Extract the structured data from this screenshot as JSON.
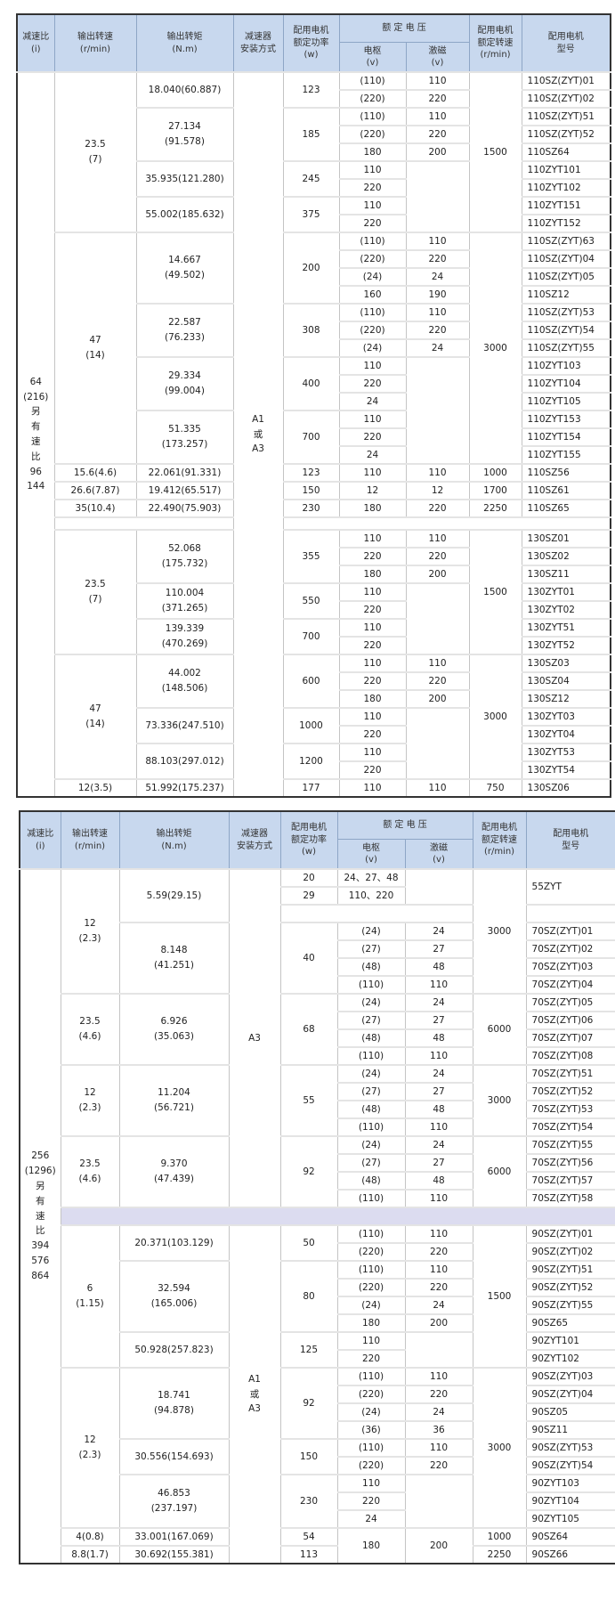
{
  "header": {
    "ratio": "减速比\n(i)",
    "speed": "输出转速\n(r/min)",
    "torque": "输出转矩\n(N.m)",
    "mount": "减速器\n安装方式",
    "power": "配用电机\n额定功率\n(w)",
    "voltage": "额 定 电 压",
    "armature": "电枢\n(v)",
    "excitation": "激磁\n(v)",
    "rpm": "配用电机\n额定转速\n(r/min)",
    "model": "配用电机\n型号"
  },
  "colors": {
    "header_bg": "#c8d8ee",
    "separator_bg": "#dcdcf0",
    "border": "#333333"
  },
  "tables": [
    {
      "rows": [
        [
          {
            "t": "64\n(216)\n另\n有\n速\n比\n96\n144",
            "rs": 41
          },
          {
            "t": "23.5\n(7)",
            "rs": 9
          },
          {
            "t": "18.040(60.887)",
            "rs": 2
          },
          {
            "t": "A1\n或\nA3",
            "rs": 41
          },
          {
            "t": "123",
            "rs": 2
          },
          "(110)",
          "110",
          {
            "t": "1500",
            "rs": 9
          },
          "110SZ(ZYT)01"
        ],
        [
          "(220)",
          "220",
          "110SZ(ZYT)02"
        ],
        [
          {
            "t": "27.134\n(91.578)",
            "rs": 3
          },
          {
            "t": "185",
            "rs": 3
          },
          "(110)",
          "110",
          "110SZ(ZYT)51"
        ],
        [
          "(220)",
          "220",
          "110SZ(ZYT)52"
        ],
        [
          "180",
          "200",
          "110SZ64"
        ],
        [
          {
            "t": "35.935(121.280)",
            "rs": 2
          },
          {
            "t": "245",
            "rs": 2
          },
          "110",
          {
            "t": "",
            "rs": 4
          },
          "110ZYT101"
        ],
        [
          "220",
          "110ZYT102"
        ],
        [
          {
            "t": "55.002(185.632)",
            "rs": 2
          },
          {
            "t": "375",
            "rs": 2
          },
          "110",
          "110ZYT151"
        ],
        [
          "220",
          "110ZYT152"
        ],
        [
          {
            "t": "47\n(14)",
            "rs": 13
          },
          {
            "t": "14.667\n(49.502)",
            "rs": 4
          },
          {
            "t": "200",
            "rs": 4
          },
          "(110)",
          "110",
          {
            "t": "3000",
            "rs": 13
          },
          "110SZ(ZYT)63"
        ],
        [
          "(220)",
          "220",
          "110SZ(ZYT)04"
        ],
        [
          "(24)",
          "24",
          "110SZ(ZYT)05"
        ],
        [
          "160",
          "190",
          "110SZ12"
        ],
        [
          {
            "t": "22.587\n(76.233)",
            "rs": 3
          },
          {
            "t": "308",
            "rs": 3
          },
          "(110)",
          "110",
          "110SZ(ZYT)53"
        ],
        [
          "(220)",
          "220",
          "110SZ(ZYT)54"
        ],
        [
          "(24)",
          "24",
          "110SZ(ZYT)55"
        ],
        [
          {
            "t": "29.334\n(99.004)",
            "rs": 3
          },
          {
            "t": "400",
            "rs": 3
          },
          "110",
          {
            "t": "",
            "rs": 6
          },
          "110ZYT103"
        ],
        [
          "220",
          "110ZYT104"
        ],
        [
          "24",
          "110ZYT105"
        ],
        [
          {
            "t": "51.335\n(173.257)",
            "rs": 3
          },
          {
            "t": "700",
            "rs": 3
          },
          "110",
          "110ZYT153"
        ],
        [
          "220",
          "110ZYT154"
        ],
        [
          "24",
          "110ZYT155"
        ],
        [
          "15.6(4.6)",
          "22.061(91.331)",
          "123",
          "110",
          "110",
          "1000",
          "110SZ56"
        ],
        [
          "26.6(7.87)",
          "19.412(65.517)",
          "150",
          "12",
          "12",
          "1700",
          "110SZ61"
        ],
        [
          "35(10.4)",
          "22.490(75.903)",
          "230",
          "180",
          "220",
          "2250",
          "110SZ65"
        ],
        {
          "sep": [
            {
              "t": "",
              "cs": 2
            },
            {
              "t": "",
              "cs": 5
            }
          ]
        },
        [
          {
            "t": "23.5\n(7)",
            "rs": 7
          },
          {
            "t": "52.068\n(175.732)",
            "rs": 3
          },
          {
            "t": "355",
            "rs": 3
          },
          "110",
          "110",
          {
            "t": "1500",
            "rs": 7
          },
          "130SZ01"
        ],
        [
          "220",
          "220",
          "130SZ02"
        ],
        [
          "180",
          "200",
          "130SZ11"
        ],
        [
          {
            "t": "110.004\n(371.265)",
            "rs": 2
          },
          {
            "t": "550",
            "rs": 2
          },
          "110",
          {
            "t": "",
            "rs": 4
          },
          "130ZYT01"
        ],
        [
          "220",
          "130ZYT02"
        ],
        [
          {
            "t": "139.339\n(470.269)",
            "rs": 2
          },
          {
            "t": "700",
            "rs": 2
          },
          "110",
          "130ZYT51"
        ],
        [
          "220",
          "130ZYT52"
        ],
        [
          {
            "t": "47\n(14)",
            "rs": 7
          },
          {
            "t": "44.002\n(148.506)",
            "rs": 3
          },
          {
            "t": "600",
            "rs": 3
          },
          "110",
          "110",
          {
            "t": "3000",
            "rs": 7
          },
          "130SZ03"
        ],
        [
          "220",
          "220",
          "130SZ04"
        ],
        [
          "180",
          "200",
          "130SZ12"
        ],
        [
          {
            "t": "73.336(247.510)",
            "rs": 2
          },
          {
            "t": "1000",
            "rs": 2
          },
          "110",
          {
            "t": "",
            "rs": 4
          },
          "130ZYT03"
        ],
        [
          "220",
          "130ZYT04"
        ],
        [
          {
            "t": "88.103(297.012)",
            "rs": 2
          },
          {
            "t": "1200",
            "rs": 2
          },
          "110",
          "130ZYT53"
        ],
        [
          "220",
          "130ZYT54"
        ],
        [
          "12(3.5)",
          "51.992(175.237)",
          "177",
          "110",
          "110",
          "750",
          "130SZ06"
        ]
      ]
    },
    {
      "rows": [
        [
          {
            "t": "256\n(1296)\n另\n有\n速\n比\n394\n576\n864",
            "rs": 39
          },
          {
            "t": "12\n(2.3)",
            "rs": 7
          },
          {
            "t": "5.59(29.15)",
            "rs": 3
          },
          {
            "t": "A3",
            "rs": 19
          },
          "20",
          "24、27、48",
          {
            "t": "",
            "rs": 2
          },
          {
            "t": "3000",
            "rs": 7
          },
          {
            "t": "55ZYT",
            "rs": 2
          }
        ],
        [
          "29",
          "110、220"
        ],
        [
          {
            "t": "",
            "cs": 3
          },
          ""
        ],
        [
          {
            "t": "8.148\n(41.251)",
            "rs": 4
          },
          {
            "t": "40",
            "rs": 4
          },
          "(24)",
          "24",
          "70SZ(ZYT)01"
        ],
        [
          "(27)",
          "27",
          "70SZ(ZYT)02"
        ],
        [
          "(48)",
          "48",
          "70SZ(ZYT)03"
        ],
        [
          "(110)",
          "110",
          "70SZ(ZYT)04"
        ],
        [
          {
            "t": "23.5\n(4.6)",
            "rs": 4
          },
          {
            "t": "6.926\n(35.063)",
            "rs": 4
          },
          {
            "t": "68",
            "rs": 4
          },
          "(24)",
          "24",
          {
            "t": "6000",
            "rs": 4
          },
          "70SZ(ZYT)05"
        ],
        [
          "(27)",
          "27",
          "70SZ(ZYT)06"
        ],
        [
          "(48)",
          "48",
          "70SZ(ZYT)07"
        ],
        [
          "(110)",
          "110",
          "70SZ(ZYT)08"
        ],
        [
          {
            "t": "12\n(2.3)",
            "rs": 4
          },
          {
            "t": "11.204\n(56.721)",
            "rs": 4
          },
          {
            "t": "55",
            "rs": 4
          },
          "(24)",
          "24",
          {
            "t": "3000",
            "rs": 4
          },
          "70SZ(ZYT)51"
        ],
        [
          "(27)",
          "27",
          "70SZ(ZYT)52"
        ],
        [
          "(48)",
          "48",
          "70SZ(ZYT)53"
        ],
        [
          "(110)",
          "110",
          "70SZ(ZYT)54"
        ],
        [
          {
            "t": "23.5\n(4.6)",
            "rs": 4
          },
          {
            "t": "9.370\n(47.439)",
            "rs": 4
          },
          {
            "t": "92",
            "rs": 4
          },
          "(24)",
          "24",
          {
            "t": "6000",
            "rs": 4
          },
          "70SZ(ZYT)55"
        ],
        [
          "(27)",
          "27",
          "70SZ(ZYT)56"
        ],
        [
          "(48)",
          "48",
          "70SZ(ZYT)57"
        ],
        [
          "(110)",
          "110",
          "70SZ(ZYT)58"
        ],
        {
          "sep": [
            {
              "t": "",
              "cs": 8
            }
          ]
        },
        [
          {
            "t": "6\n(1.15)",
            "rs": 8
          },
          {
            "t": "20.371(103.129)",
            "rs": 2
          },
          {
            "t": "A1\n或\nA3",
            "rs": 19
          },
          {
            "t": "50",
            "rs": 2
          },
          "(110)",
          "110",
          {
            "t": "1500",
            "rs": 8
          },
          "90SZ(ZYT)01"
        ],
        [
          "(220)",
          "220",
          "90SZ(ZYT)02"
        ],
        [
          {
            "t": "32.594\n(165.006)",
            "rs": 4
          },
          {
            "t": "80",
            "rs": 4
          },
          "(110)",
          "110",
          "90SZ(ZYT)51"
        ],
        [
          "(220)",
          "220",
          "90SZ(ZYT)52"
        ],
        [
          "(24)",
          "24",
          "90SZ(ZYT)55"
        ],
        [
          "180",
          "200",
          "90SZ65"
        ],
        [
          {
            "t": "50.928(257.823)",
            "rs": 2
          },
          {
            "t": "125",
            "rs": 2
          },
          "110",
          {
            "t": "",
            "rs": 2
          },
          "90ZYT101"
        ],
        [
          "220",
          "90ZYT102"
        ],
        [
          {
            "t": "12\n(2.3)",
            "rs": 9
          },
          {
            "t": "18.741\n(94.878)",
            "rs": 4
          },
          {
            "t": "92",
            "rs": 4
          },
          "(110)",
          "110",
          {
            "t": "3000",
            "rs": 9
          },
          "90SZ(ZYT)03"
        ],
        [
          "(220)",
          "220",
          "90SZ(ZYT)04"
        ],
        [
          "(24)",
          "24",
          "90SZ05"
        ],
        [
          "(36)",
          "36",
          "90SZ11"
        ],
        [
          {
            "t": "30.556(154.693)",
            "rs": 2
          },
          {
            "t": "150",
            "rs": 2
          },
          "(110)",
          "110",
          "90SZ(ZYT)53"
        ],
        [
          "(220)",
          "220",
          "90SZ(ZYT)54"
        ],
        [
          {
            "t": "46.853\n(237.197)",
            "rs": 3
          },
          {
            "t": "230",
            "rs": 3
          },
          "110",
          {
            "t": "",
            "rs": 3
          },
          "90ZYT103"
        ],
        [
          "220",
          "90ZYT104"
        ],
        [
          "24",
          "90ZYT105"
        ],
        [
          "4(0.8)",
          "33.001(167.069)",
          "54",
          {
            "t": "180",
            "rs": 2
          },
          {
            "t": "200",
            "rs": 2
          },
          "1000",
          "90SZ64"
        ],
        [
          "8.8(1.7)",
          "30.692(155.381)",
          "113",
          "2250",
          "90SZ66"
        ]
      ]
    }
  ]
}
